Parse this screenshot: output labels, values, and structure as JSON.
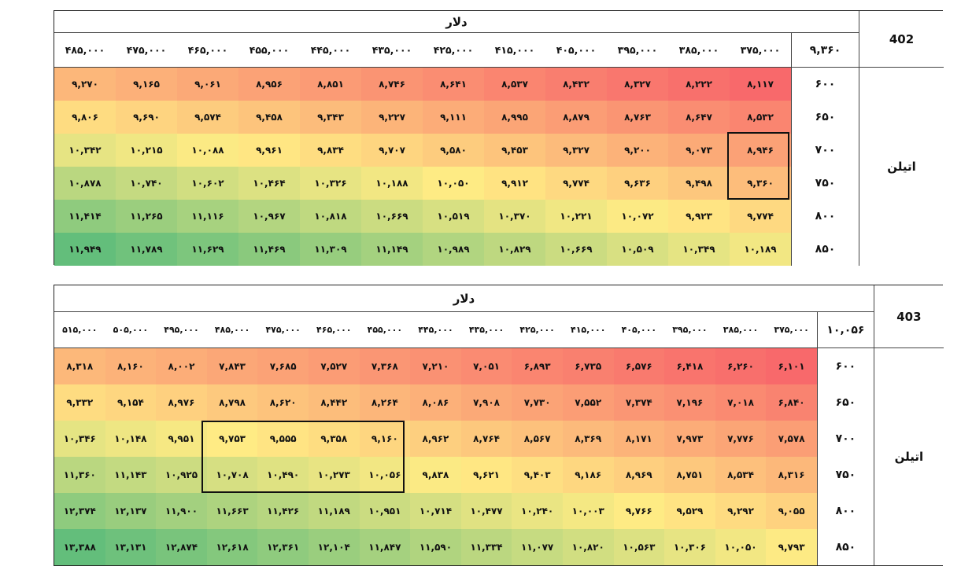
{
  "tables": [
    {
      "id": "402",
      "header_title": "دلار",
      "corner_value": "۹,۳۶۰",
      "row_label": "اتیلن",
      "columns": [
        "۴۸۵,۰۰۰",
        "۴۷۵,۰۰۰",
        "۴۶۵,۰۰۰",
        "۴۵۵,۰۰۰",
        "۴۴۵,۰۰۰",
        "۴۳۵,۰۰۰",
        "۴۲۵,۰۰۰",
        "۴۱۵,۰۰۰",
        "۴۰۵,۰۰۰",
        "۳۹۵,۰۰۰",
        "۳۸۵,۰۰۰",
        "۳۷۵,۰۰۰"
      ],
      "rows": [
        {
          "label": "۶۰۰",
          "values": [
            "۹,۲۷۰",
            "۹,۱۶۵",
            "۹,۰۶۱",
            "۸,۹۵۶",
            "۸,۸۵۱",
            "۸,۷۴۶",
            "۸,۶۴۱",
            "۸,۵۳۷",
            "۸,۴۳۲",
            "۸,۳۲۷",
            "۸,۲۲۲",
            "۸,۱۱۷"
          ]
        },
        {
          "label": "۶۵۰",
          "values": [
            "۹,۸۰۶",
            "۹,۶۹۰",
            "۹,۵۷۴",
            "۹,۴۵۸",
            "۹,۳۴۳",
            "۹,۲۲۷",
            "۹,۱۱۱",
            "۸,۹۹۵",
            "۸,۸۷۹",
            "۸,۷۶۳",
            "۸,۶۴۷",
            "۸,۵۳۲"
          ]
        },
        {
          "label": "۷۰۰",
          "values": [
            "۱۰,۳۴۲",
            "۱۰,۲۱۵",
            "۱۰,۰۸۸",
            "۹,۹۶۱",
            "۹,۸۳۴",
            "۹,۷۰۷",
            "۹,۵۸۰",
            "۹,۴۵۳",
            "۹,۳۲۷",
            "۹,۲۰۰",
            "۹,۰۷۳",
            "۸,۹۴۶"
          ]
        },
        {
          "label": "۷۵۰",
          "values": [
            "۱۰,۸۷۸",
            "۱۰,۷۴۰",
            "۱۰,۶۰۲",
            "۱۰,۴۶۴",
            "۱۰,۳۲۶",
            "۱۰,۱۸۸",
            "۱۰,۰۵۰",
            "۹,۹۱۲",
            "۹,۷۷۴",
            "۹,۶۳۶",
            "۹,۴۹۸",
            "۹,۳۶۰"
          ]
        },
        {
          "label": "۸۰۰",
          "values": [
            "۱۱,۴۱۴",
            "۱۱,۲۶۵",
            "۱۱,۱۱۶",
            "۱۰,۹۶۷",
            "۱۰,۸۱۸",
            "۱۰,۶۶۹",
            "۱۰,۵۱۹",
            "۱۰,۳۷۰",
            "۱۰,۲۲۱",
            "۱۰,۰۷۲",
            "۹,۹۲۳",
            "۹,۷۷۴"
          ]
        },
        {
          "label": "۸۵۰",
          "values": [
            "۱۱,۹۴۹",
            "۱۱,۷۸۹",
            "۱۱,۶۲۹",
            "۱۱,۴۶۹",
            "۱۱,۳۰۹",
            "۱۱,۱۴۹",
            "۱۰,۹۸۹",
            "۱۰,۸۲۹",
            "۱۰,۶۶۹",
            "۱۰,۵۰۹",
            "۱۰,۳۴۹",
            "۱۰,۱۸۹"
          ]
        }
      ],
      "color_min": 8117,
      "color_max": 11949
    },
    {
      "id": "403",
      "header_title": "دلار",
      "corner_value": "۱۰,۰۵۶",
      "row_label": "اتیلن",
      "columns": [
        "۵۱۵,۰۰۰",
        "۵۰۵,۰۰۰",
        "۴۹۵,۰۰۰",
        "۴۸۵,۰۰۰",
        "۴۷۵,۰۰۰",
        "۴۶۵,۰۰۰",
        "۴۵۵,۰۰۰",
        "۴۴۵,۰۰۰",
        "۴۳۵,۰۰۰",
        "۴۲۵,۰۰۰",
        "۴۱۵,۰۰۰",
        "۴۰۵,۰۰۰",
        "۳۹۵,۰۰۰",
        "۳۸۵,۰۰۰",
        "۳۷۵,۰۰۰"
      ],
      "rows": [
        {
          "label": "۶۰۰",
          "values": [
            "۸,۳۱۸",
            "۸,۱۶۰",
            "۸,۰۰۲",
            "۷,۸۴۳",
            "۷,۶۸۵",
            "۷,۵۲۷",
            "۷,۳۶۸",
            "۷,۲۱۰",
            "۷,۰۵۱",
            "۶,۸۹۳",
            "۶,۷۳۵",
            "۶,۵۷۶",
            "۶,۴۱۸",
            "۶,۲۶۰",
            "۶,۱۰۱"
          ]
        },
        {
          "label": "۶۵۰",
          "values": [
            "۹,۳۳۲",
            "۹,۱۵۴",
            "۸,۹۷۶",
            "۸,۷۹۸",
            "۸,۶۲۰",
            "۸,۴۴۲",
            "۸,۲۶۴",
            "۸,۰۸۶",
            "۷,۹۰۸",
            "۷,۷۳۰",
            "۷,۵۵۲",
            "۷,۳۷۴",
            "۷,۱۹۶",
            "۷,۰۱۸",
            "۶,۸۴۰"
          ]
        },
        {
          "label": "۷۰۰",
          "values": [
            "۱۰,۳۴۶",
            "۱۰,۱۴۸",
            "۹,۹۵۱",
            "۹,۷۵۳",
            "۹,۵۵۵",
            "۹,۳۵۸",
            "۹,۱۶۰",
            "۸,۹۶۲",
            "۸,۷۶۴",
            "۸,۵۶۷",
            "۸,۳۶۹",
            "۸,۱۷۱",
            "۷,۹۷۳",
            "۷,۷۷۶",
            "۷,۵۷۸"
          ]
        },
        {
          "label": "۷۵۰",
          "values": [
            "۱۱,۳۶۰",
            "۱۱,۱۴۳",
            "۱۰,۹۲۵",
            "۱۰,۷۰۸",
            "۱۰,۴۹۰",
            "۱۰,۲۷۳",
            "۱۰,۰۵۶",
            "۹,۸۳۸",
            "۹,۶۲۱",
            "۹,۴۰۳",
            "۹,۱۸۶",
            "۸,۹۶۹",
            "۸,۷۵۱",
            "۸,۵۳۴",
            "۸,۳۱۶"
          ]
        },
        {
          "label": "۸۰۰",
          "values": [
            "۱۲,۳۷۴",
            "۱۲,۱۳۷",
            "۱۱,۹۰۰",
            "۱۱,۶۶۳",
            "۱۱,۴۲۶",
            "۱۱,۱۸۹",
            "۱۰,۹۵۱",
            "۱۰,۷۱۴",
            "۱۰,۴۷۷",
            "۱۰,۲۴۰",
            "۱۰,۰۰۳",
            "۹,۷۶۶",
            "۹,۵۲۹",
            "۹,۲۹۲",
            "۹,۰۵۵"
          ]
        },
        {
          "label": "۸۵۰",
          "values": [
            "۱۳,۳۸۸",
            "۱۳,۱۳۱",
            "۱۲,۸۷۴",
            "۱۲,۶۱۸",
            "۱۲,۳۶۱",
            "۱۲,۱۰۴",
            "۱۱,۸۴۷",
            "۱۱,۵۹۰",
            "۱۱,۳۳۴",
            "۱۱,۰۷۷",
            "۱۰,۸۲۰",
            "۱۰,۵۶۳",
            "۱۰,۳۰۶",
            "۱۰,۰۵۰",
            "۹,۷۹۳"
          ]
        }
      ],
      "color_min": 6101,
      "color_max": 13388
    }
  ],
  "colors": {
    "low": "#f8696b",
    "mid": "#ffeb84",
    "high": "#63be7b",
    "border": "#222222"
  }
}
